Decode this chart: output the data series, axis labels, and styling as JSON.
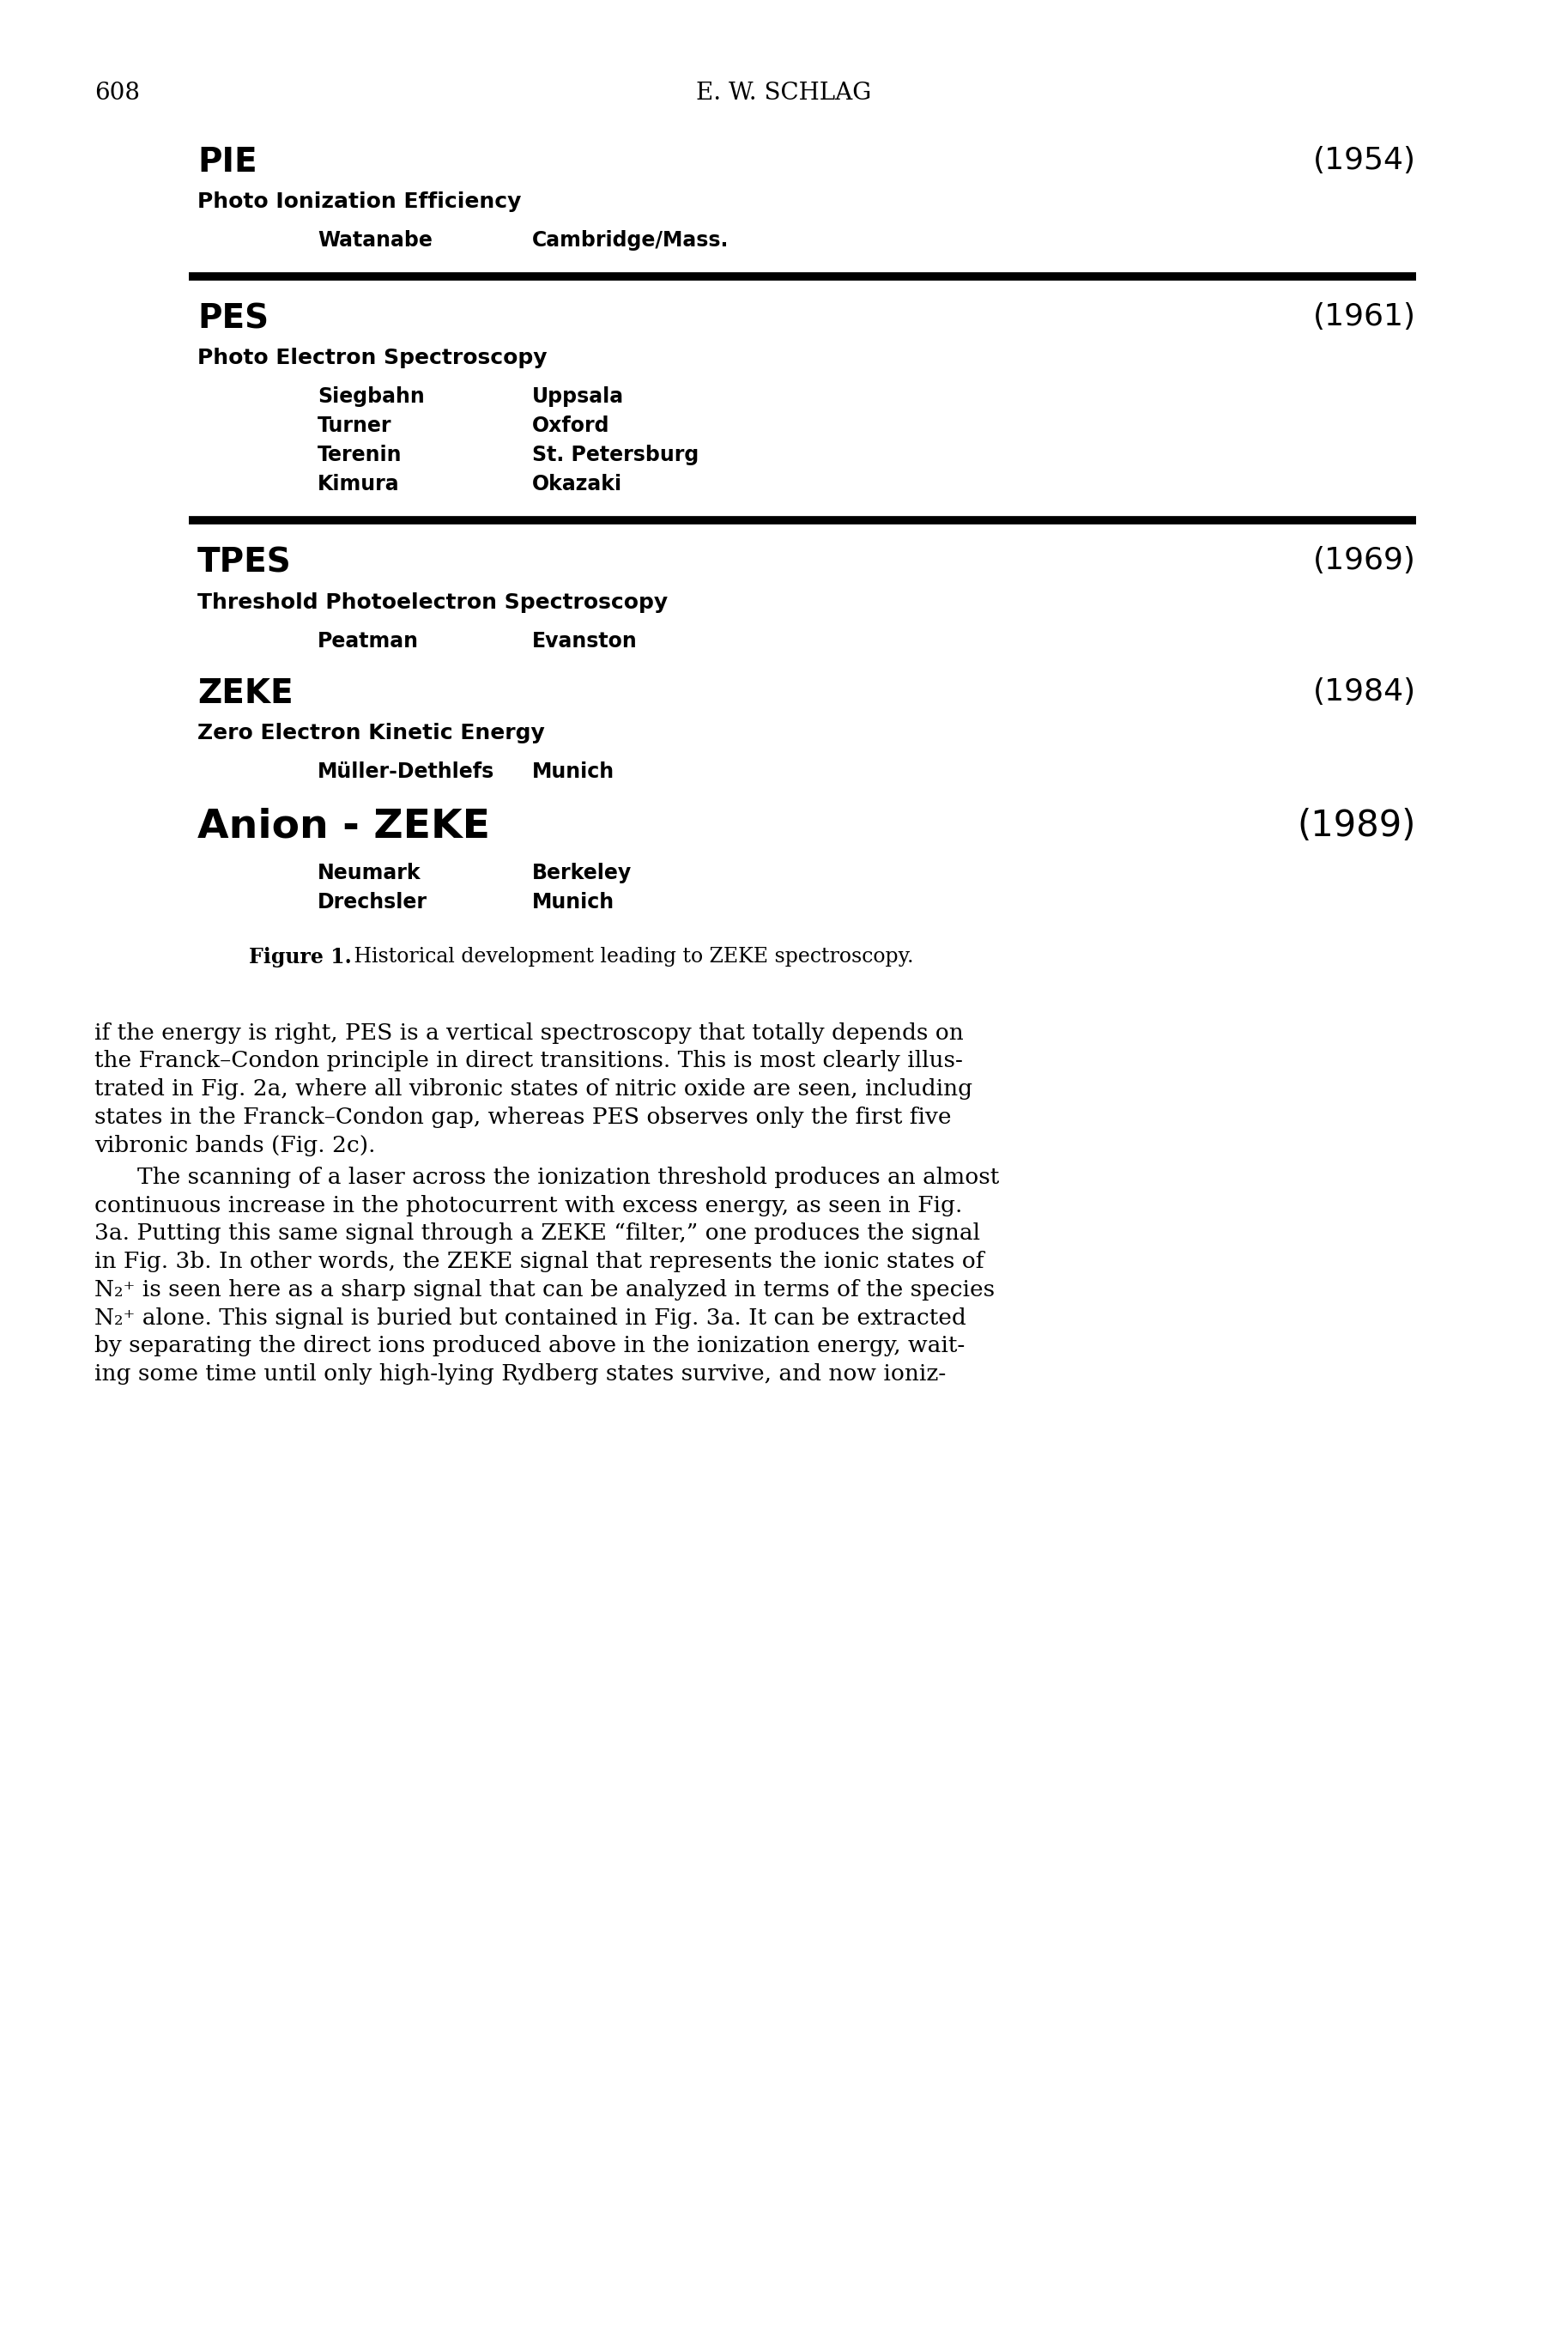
{
  "page_number": "608",
  "header": "E. W. SCHLAG",
  "sections": [
    {
      "acronym": "PIE",
      "year": "(1954)",
      "full_name": "Photo Ionization Efficiency",
      "names": [
        "Watanabe"
      ],
      "places": [
        "Cambridge/Mass."
      ],
      "separator_after": true
    },
    {
      "acronym": "PES",
      "year": "(1961)",
      "full_name": "Photo Electron Spectroscopy",
      "names": [
        "Siegbahn",
        "Turner",
        "Terenin",
        "Kimura"
      ],
      "places": [
        "Uppsala",
        "Oxford",
        "St. Petersburg",
        "Okazaki"
      ],
      "separator_after": true
    },
    {
      "acronym": "TPES",
      "year": "(1969)",
      "full_name": "Threshold Photoelectron Spectroscopy",
      "names": [
        "Peatman"
      ],
      "places": [
        "Evanston"
      ],
      "separator_after": false
    },
    {
      "acronym": "ZEKE",
      "year": "(1984)",
      "full_name": "Zero Electron Kinetic Energy",
      "names": [
        "Müller-Dethlefs"
      ],
      "places": [
        "Munich"
      ],
      "separator_after": false
    },
    {
      "acronym": "Anion - ZEKE",
      "year": "(1989)",
      "full_name": "",
      "names": [
        "Neumark",
        "Drechsler"
      ],
      "places": [
        "Berkeley",
        "Munich"
      ],
      "separator_after": false
    }
  ],
  "figure_caption_bold": "Figure 1.",
  "figure_caption_normal": "   Historical development leading to ZEKE spectroscopy.",
  "body_paragraphs": [
    {
      "indent": false,
      "lines": [
        "if the energy is right, PES is a vertical spectroscopy that totally depends on",
        "the Franck–Condon principle in direct transitions. This is most clearly illus-",
        "trated in Fig. 2a, where all vibronic states of nitric oxide are seen, including",
        "states in the Franck–Condon gap, whereas PES observes only the first five",
        "vibronic bands (Fig. 2c)."
      ]
    },
    {
      "indent": true,
      "lines": [
        "The scanning of a laser across the ionization threshold produces an almost",
        "continuous increase in the photocurrent with excess energy, as seen in Fig.",
        "3a. Putting this same signal through a ZEKE “filter,” one produces the signal",
        "in Fig. 3b. In other words, the ZEKE signal that represents the ionic states of",
        "N₂⁺ is seen here as a sharp signal that can be analyzed in terms of the species",
        "N₂⁺ alone. This signal is buried but contained in Fig. 3a. It can be extracted",
        "by separating the direct ions produced above in the ionization energy, wait-",
        "ing some time until only high-lying Rydberg states survive, and now ioniz-"
      ]
    }
  ],
  "bg_color": "#ffffff",
  "text_color": "#000000"
}
